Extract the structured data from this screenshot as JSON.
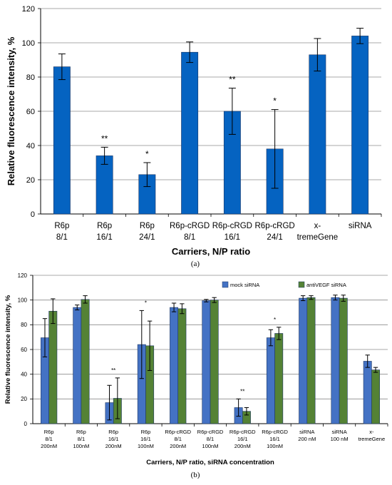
{
  "chart_data": [
    {
      "panel": "(a)",
      "type": "bar",
      "xlabel": "Carriers, N/P ratio",
      "ylabel": "Relative fluorescence intensity, %",
      "ylim": [
        0,
        120
      ],
      "yticks": [
        0,
        20,
        40,
        60,
        80,
        100,
        120
      ],
      "grid": true,
      "categories": [
        [
          "R6p",
          "8/1"
        ],
        [
          "R6p",
          "16/1"
        ],
        [
          "R6p",
          "24/1"
        ],
        [
          "R6p-cRGD",
          "8/1"
        ],
        [
          "R6p-cRGD",
          "16/1"
        ],
        [
          "R6p-cRGD",
          "24/1"
        ],
        [
          "x-",
          "tremeGene"
        ],
        [
          "siRNA"
        ]
      ],
      "series": [
        {
          "color": "#0563C1",
          "values": [
            86,
            34,
            23,
            94.5,
            60,
            38,
            93,
            104
          ],
          "errors": [
            7.5,
            5,
            7,
            6,
            13.5,
            23,
            9.5,
            4.5
          ],
          "significance": [
            "",
            "**",
            "*",
            "",
            "**",
            "*",
            "",
            ""
          ]
        }
      ]
    },
    {
      "panel": "(b)",
      "type": "bar",
      "xlabel": "Carriers, N/P ratio, siRNA concentration",
      "ylabel": "Relative fluorescence intensity, %",
      "ylim": [
        0,
        120
      ],
      "yticks": [
        0,
        20,
        40,
        60,
        80,
        100,
        120
      ],
      "grid": true,
      "legend_position": "top-right",
      "categories": [
        [
          "R6p",
          "8/1",
          "200nM"
        ],
        [
          "R6p",
          "8/1",
          "100nM"
        ],
        [
          "R6p",
          "16/1",
          "200nM"
        ],
        [
          "R6p",
          "16/1",
          "100nM"
        ],
        [
          "R6p-cRGD",
          "8/1",
          "200nM"
        ],
        [
          "R6p-cRGD",
          "8/1",
          "100nM"
        ],
        [
          "R6p-cRGD",
          "16/1",
          "200nM"
        ],
        [
          "R6p-cRGD",
          "16/1",
          "100nM"
        ],
        [
          "siRNA",
          "200 nM"
        ],
        [
          "siRNA",
          "100 nM"
        ],
        [
          "x-",
          "tremeGene"
        ]
      ],
      "significance": [
        "",
        "",
        "**",
        "*",
        "",
        "",
        "**",
        "*",
        "",
        "",
        ""
      ],
      "series": [
        {
          "name": "mock siRNA",
          "color": "#4472C4",
          "values": [
            69.5,
            94,
            17,
            64,
            94,
            99.5,
            13,
            69.5,
            101.5,
            102,
            50.5
          ],
          "errors": [
            15.5,
            2,
            14,
            27.5,
            3.5,
            1,
            7,
            6.5,
            2,
            2,
            5
          ]
        },
        {
          "name": "antiVEGF siRNA",
          "color": "#548235",
          "values": [
            91,
            100.5,
            20.5,
            63,
            93,
            100,
            10,
            73,
            102,
            101.5,
            43.5
          ],
          "errors": [
            10,
            3,
            16.5,
            20,
            4,
            2,
            3,
            5,
            1.5,
            2.5,
            2
          ]
        }
      ]
    }
  ],
  "captions": {
    "a": "(a)",
    "b": "(b)"
  }
}
